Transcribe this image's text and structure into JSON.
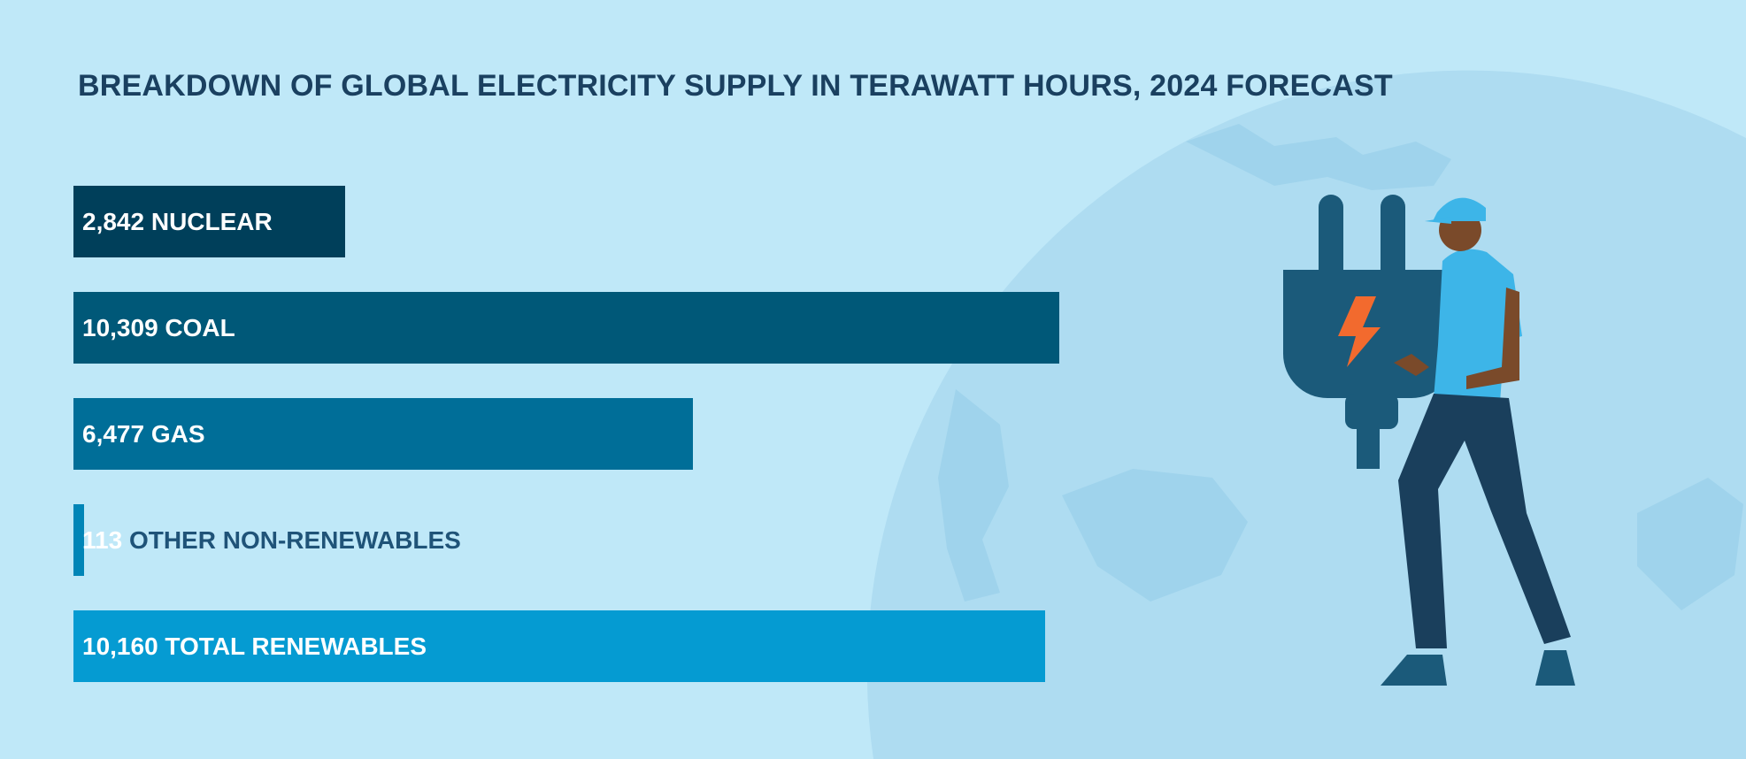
{
  "chart_data": {
    "type": "bar",
    "orientation": "horizontal",
    "title": "BREAKDOWN OF GLOBAL ELECTRICITY SUPPLY IN TERAWATT HOURS, 2024 FORECAST",
    "categories": [
      "NUCLEAR",
      "COAL",
      "GAS",
      "OTHER NON-RENEWABLES",
      "TOTAL RENEWABLES"
    ],
    "values": [
      2842,
      10309,
      6477,
      113,
      10160
    ],
    "value_labels": [
      "2,842",
      "10,309",
      "6,477",
      "113",
      "10,160"
    ],
    "colors": [
      "#003f5a",
      "#005878",
      "#006e98",
      "#0085b7",
      "#059bd2"
    ],
    "xlim": [
      0,
      10309
    ],
    "grid": false,
    "legend": "none"
  },
  "colors": {
    "background": "#bfe8f8",
    "globe": "#aedcf1",
    "title": "#1a4060"
  },
  "illustration": "worker-holding-plug"
}
